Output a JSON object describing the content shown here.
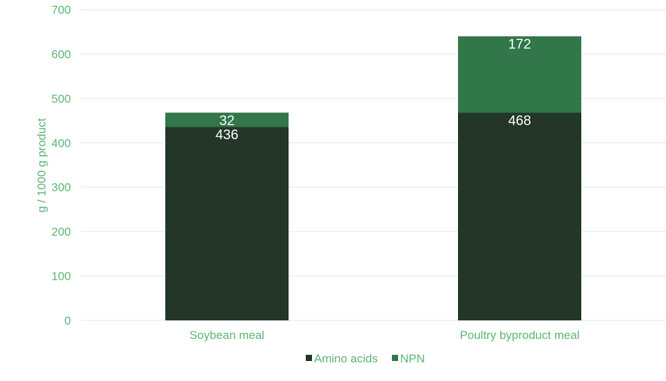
{
  "chart_data": {
    "type": "bar",
    "stacked": true,
    "categories": [
      "Soybean meal",
      "Poultry byproduct meal"
    ],
    "series": [
      {
        "name": "Amino acids",
        "values": [
          436,
          468
        ],
        "color": "#233628"
      },
      {
        "name": "NPN",
        "values": [
          32,
          172
        ],
        "color": "#31774A"
      }
    ],
    "ylabel": "g / 1000 g product",
    "ylim": [
      0,
      700
    ],
    "yticks": [
      0,
      100,
      200,
      300,
      400,
      500,
      600,
      700
    ],
    "grid": true,
    "legend_position": "bottom",
    "text_color": "#5BB574",
    "grid_color": "#D6EDE3"
  }
}
